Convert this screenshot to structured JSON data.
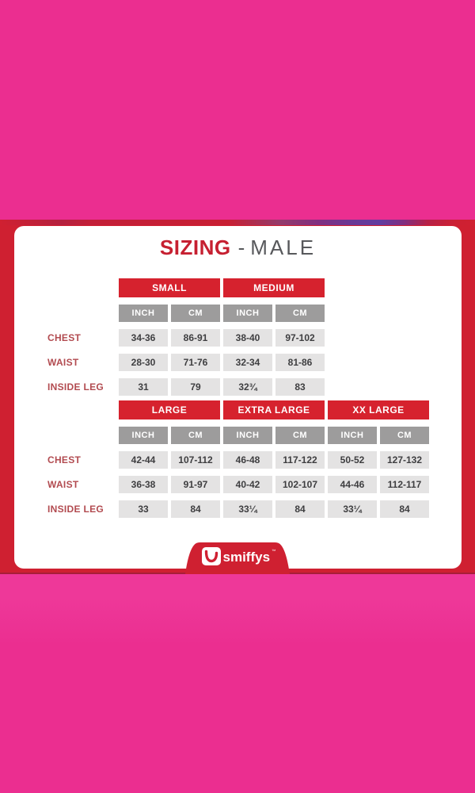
{
  "colors": {
    "pink_top": "#eb2e90",
    "pink_bottom": "#ee3899",
    "band_red": "#cf2031",
    "band_edge": "#a81e39",
    "header_red": "#d6222e",
    "title_red": "#c62031",
    "unit_gray": "#9d9c9c",
    "cell_gray": "#e4e3e3",
    "label_red": "#b24b50",
    "value_text": "#3e3e40",
    "male_gray": "#58595c"
  },
  "card": {
    "title": {
      "brand_word": "SIZING",
      "separator": "-",
      "category": "MALE"
    },
    "tables": [
      {
        "name": "sizing-table-small-medium",
        "groups": [
          {
            "label": "SMALL"
          },
          {
            "label": "MEDIUM"
          }
        ],
        "unit_labels": [
          "INCH",
          "CM",
          "INCH",
          "CM"
        ],
        "rows": [
          {
            "label": "CHEST",
            "values": [
              "34-36",
              "86-91",
              "38-40",
              "97-102"
            ]
          },
          {
            "label": "WAIST",
            "values": [
              "28-30",
              "71-76",
              "32-34",
              "81-86"
            ]
          },
          {
            "label": "INSIDE LEG",
            "values": [
              "31",
              "79",
              "32¾",
              "83"
            ]
          }
        ]
      },
      {
        "name": "sizing-table-large-xlarge-xxlarge",
        "groups": [
          {
            "label": "LARGE"
          },
          {
            "label": "EXTRA LARGE"
          },
          {
            "label": "XX LARGE"
          }
        ],
        "unit_labels": [
          "INCH",
          "CM",
          "INCH",
          "CM",
          "INCH",
          "CM"
        ],
        "rows": [
          {
            "label": "CHEST",
            "values": [
              "42-44",
              "107-112",
              "46-48",
              "117-122",
              "50-52",
              "127-132"
            ]
          },
          {
            "label": "WAIST",
            "values": [
              "36-38",
              "91-97",
              "40-42",
              "102-107",
              "44-46",
              "112-117"
            ]
          },
          {
            "label": "INSIDE LEG",
            "values": [
              "33",
              "84",
              "33¼",
              "84",
              "33¼",
              "84"
            ]
          }
        ]
      }
    ],
    "logo": {
      "brand": "smiffys",
      "trademark": "™",
      "icon": "smile-icon"
    }
  }
}
